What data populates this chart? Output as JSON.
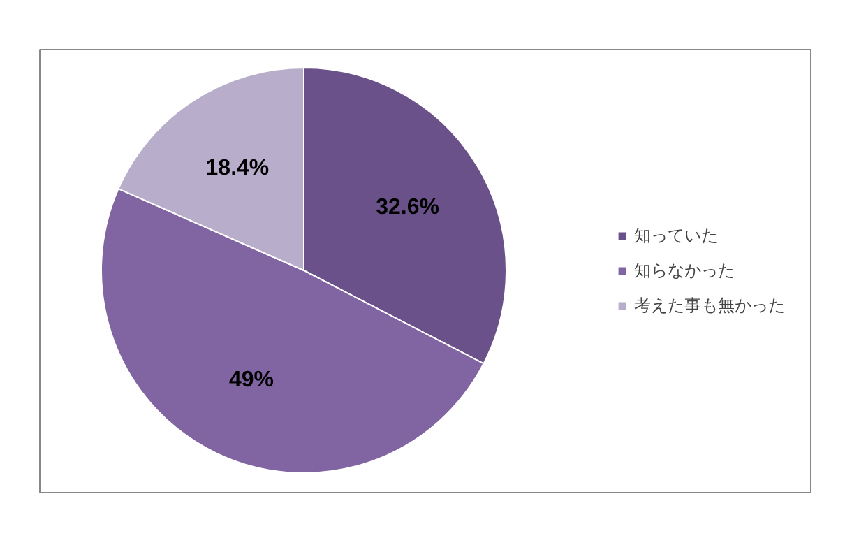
{
  "chart_data": {
    "type": "pie",
    "categories": [
      "知っていた",
      "知らなかった",
      "考えた事も無かった"
    ],
    "values": [
      32.6,
      49,
      18.4
    ],
    "colors": [
      "#6a5189",
      "#8165a2",
      "#b8aecb"
    ],
    "value_labels": [
      "32.6%",
      "49%",
      "18.4%"
    ],
    "legend": "right"
  }
}
